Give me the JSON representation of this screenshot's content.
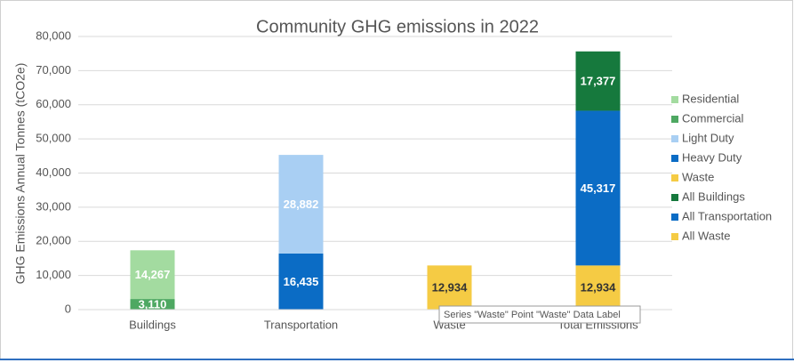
{
  "chart_data": {
    "type": "stacked_bar",
    "title": "Community GHG emissions in 2022",
    "y_label": "GHG Emissions Annual Tonnes (tCO2e)",
    "categories": [
      "Buildings",
      "Transportation",
      "Waste",
      "Total Emissions"
    ],
    "series": [
      {
        "name": "Residential",
        "color": "#a3dba0",
        "label_color": "#ffffff",
        "values": [
          14267,
          null,
          null,
          null
        ],
        "value_labels": [
          "14,267",
          null,
          null,
          null
        ]
      },
      {
        "name": "Commercial",
        "color": "#4ea862",
        "label_color": "#ffffff",
        "values": [
          3110,
          null,
          null,
          null
        ],
        "value_labels": [
          "3,110",
          null,
          null,
          null
        ]
      },
      {
        "name": "Light Duty",
        "color": "#a9cff3",
        "label_color": "#ffffff",
        "values": [
          null,
          28882,
          null,
          null
        ],
        "value_labels": [
          null,
          "28,882",
          null,
          null
        ]
      },
      {
        "name": "Heavy Duty",
        "color": "#0b6cc5",
        "label_color": "#ffffff",
        "values": [
          null,
          16435,
          null,
          null
        ],
        "value_labels": [
          null,
          "16,435",
          null,
          null
        ]
      },
      {
        "name": "Waste",
        "color": "#f5cb44",
        "label_color": "#333333",
        "values": [
          null,
          null,
          12934,
          null
        ],
        "value_labels": [
          null,
          null,
          "12,934",
          null
        ]
      },
      {
        "name": "All Buildings",
        "color": "#16793d",
        "label_color": "#ffffff",
        "values": [
          null,
          null,
          null,
          17377
        ],
        "value_labels": [
          null,
          null,
          null,
          "17,377"
        ]
      },
      {
        "name": "All Transportation",
        "color": "#0b6cc5",
        "label_color": "#ffffff",
        "values": [
          null,
          null,
          null,
          45317
        ],
        "value_labels": [
          null,
          null,
          null,
          "45,317"
        ]
      },
      {
        "name": "All Waste",
        "color": "#f5cb44",
        "label_color": "#333333",
        "values": [
          null,
          null,
          null,
          12934
        ],
        "value_labels": [
          null,
          null,
          null,
          "12,934"
        ]
      }
    ],
    "ylim": [
      0,
      80000
    ],
    "yticks": [
      0,
      {
        "value": 10000,
        "label": "10,000"
      },
      {
        "value": 20000,
        "label": "20,000"
      },
      {
        "value": 30000,
        "label": "30,000"
      },
      {
        "value": 40000,
        "label": "40,000"
      },
      {
        "value": 50000,
        "label": "50,000"
      },
      {
        "value": 60000,
        "label": "60,000"
      },
      {
        "value": 70000,
        "label": "70,000"
      },
      {
        "value": 80000,
        "label": "80,000"
      }
    ],
    "grid": true,
    "legend": "right",
    "tooltip": "Series \"Waste\" Point \"Waste\" Data Label"
  }
}
